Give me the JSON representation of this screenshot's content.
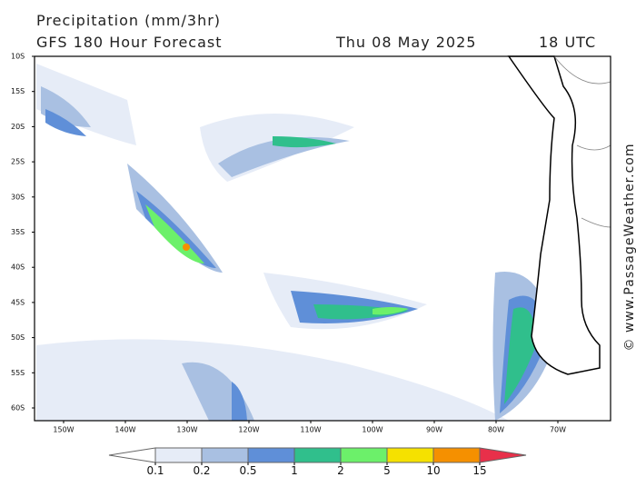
{
  "header": {
    "title": "Precipitation (mm/3hr)",
    "subtitle": "GFS 180 Hour Forecast",
    "date": "Thu 08 May 2025",
    "time": "18 UTC"
  },
  "map": {
    "lat_labels": [
      "10S",
      "15S",
      "20S",
      "25S",
      "30S",
      "35S",
      "40S",
      "45S",
      "50S",
      "55S",
      "60S"
    ],
    "lon_labels": [
      "150W",
      "140W",
      "130W",
      "120W",
      "110W",
      "100W",
      "90W",
      "80W",
      "70W"
    ]
  },
  "colorbar": {
    "levels": [
      0.1,
      0.2,
      0.5,
      1,
      2,
      5,
      10,
      15
    ],
    "colors": [
      "#ffffff",
      "#e6ecf7",
      "#a9c0e2",
      "#5f8fd8",
      "#30bf8c",
      "#6cf06a",
      "#f5e100",
      "#f59000",
      "#e8304a"
    ]
  },
  "watermark": "© www.PassageWeather.com"
}
